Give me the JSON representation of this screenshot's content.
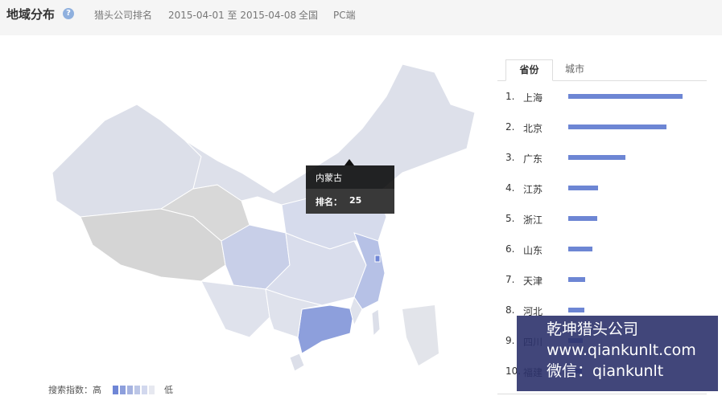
{
  "header": {
    "title": "地域分布",
    "help_icon": "question-circle-icon",
    "keyword": "猎头公司排名",
    "date_range": "2015-04-01 至 2015-04-08",
    "region": "全国",
    "platform": "PC端"
  },
  "tooltip": {
    "province": "内蒙古",
    "rank_label": "排名：",
    "rank_value": "25"
  },
  "legend": {
    "label": "搜索指数：高",
    "low": "低",
    "colors": [
      "#6f86d6",
      "#8d9fdc",
      "#a6b3e0",
      "#bcc6e6",
      "#d2d8ee",
      "#e6e8f0"
    ]
  },
  "tabs": [
    {
      "label": "省份",
      "active": true
    },
    {
      "label": "城市",
      "active": false
    }
  ],
  "ranking": [
    {
      "rank": "1.",
      "name": "上海",
      "value": 1.0
    },
    {
      "rank": "2.",
      "name": "北京",
      "value": 0.86
    },
    {
      "rank": "3.",
      "name": "广东",
      "value": 0.5
    },
    {
      "rank": "4.",
      "name": "江苏",
      "value": 0.26
    },
    {
      "rank": "5.",
      "name": "浙江",
      "value": 0.25
    },
    {
      "rank": "6.",
      "name": "山东",
      "value": 0.21
    },
    {
      "rank": "7.",
      "name": "天津",
      "value": 0.15
    },
    {
      "rank": "8.",
      "name": "河北",
      "value": 0.14
    },
    {
      "rank": "9.",
      "name": "四川",
      "value": 0.13
    },
    {
      "rank": "10.",
      "name": "福建",
      "value": 0.12
    }
  ],
  "watermark": {
    "line1": "乾坤猎头公司",
    "line2": "www.qiankunlt.com",
    "line3": "微信：qiankunlt"
  },
  "bar_color": "#6d86d4"
}
